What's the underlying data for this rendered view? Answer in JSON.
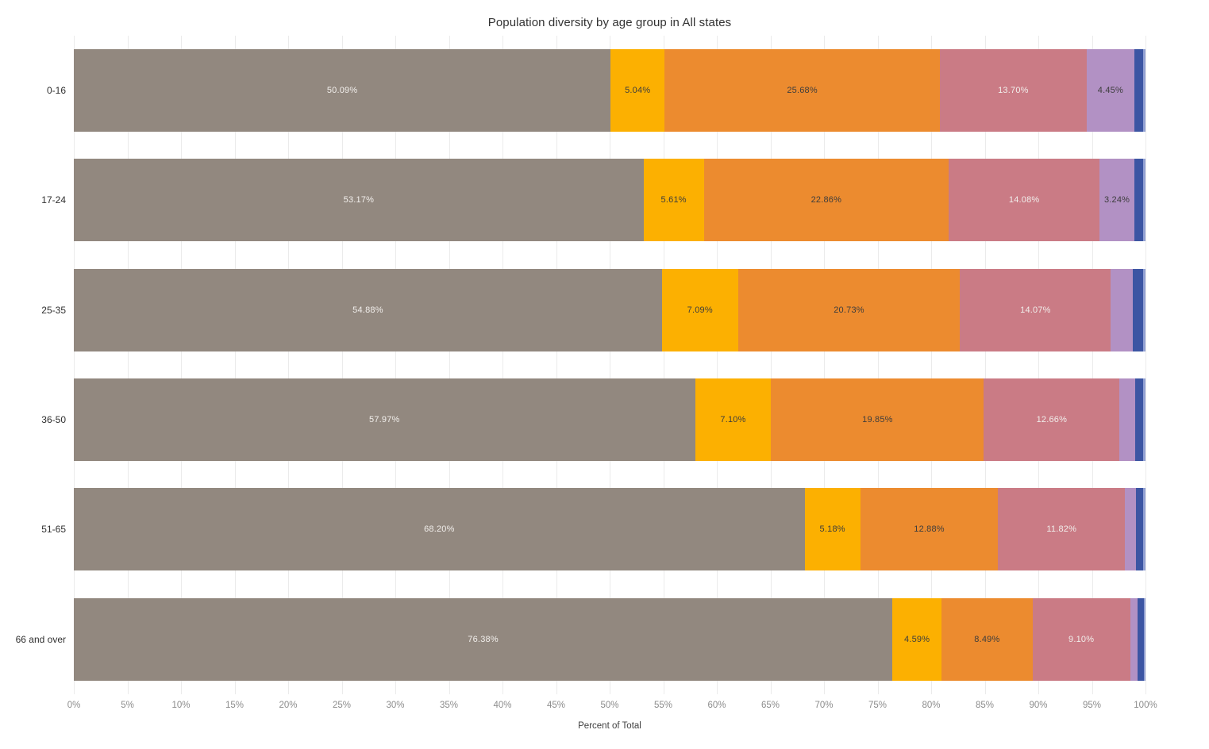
{
  "chart_data": {
    "type": "bar",
    "orientation": "horizontal-stacked",
    "title": "Population diversity by age group in All states",
    "xlabel": "Percent of Total",
    "xlim": [
      0,
      100
    ],
    "x_ticks": [
      "0%",
      "5%",
      "10%",
      "15%",
      "20%",
      "25%",
      "30%",
      "35%",
      "40%",
      "45%",
      "50%",
      "55%",
      "60%",
      "65%",
      "70%",
      "75%",
      "80%",
      "85%",
      "90%",
      "95%",
      "100%"
    ],
    "grid": "vertical",
    "legend_position": "none",
    "categories": [
      "0-16",
      "17-24",
      "25-35",
      "36-50",
      "51-65",
      "66 and over"
    ],
    "series": [
      {
        "name": "gray",
        "color": "#92887f",
        "label_text_color": "#f1eeeb",
        "values": [
          50.09,
          53.17,
          54.88,
          57.97,
          68.2,
          76.38
        ],
        "labels": [
          "50.09%",
          "53.17%",
          "54.88%",
          "57.97%",
          "68.20%",
          "76.38%"
        ]
      },
      {
        "name": "amber",
        "color": "#fcb001",
        "label_text_color": "#3d3d3d",
        "values": [
          5.04,
          5.61,
          7.09,
          7.1,
          5.18,
          4.59
        ],
        "labels": [
          "5.04%",
          "5.61%",
          "7.09%",
          "7.10%",
          "5.18%",
          "4.59%"
        ]
      },
      {
        "name": "orange",
        "color": "#ec8b2f",
        "label_text_color": "#3d3d3d",
        "values": [
          25.68,
          22.86,
          20.73,
          19.85,
          12.88,
          8.49
        ],
        "labels": [
          "25.68%",
          "22.86%",
          "20.73%",
          "19.85%",
          "12.88%",
          "8.49%"
        ]
      },
      {
        "name": "rose",
        "color": "#ca7b85",
        "label_text_color": "#f1eeeb",
        "values": [
          13.7,
          14.08,
          14.07,
          12.66,
          11.82,
          9.1
        ],
        "labels": [
          "13.70%",
          "14.08%",
          "14.07%",
          "12.66%",
          "11.82%",
          "9.10%"
        ]
      },
      {
        "name": "lavender",
        "color": "#b291c4",
        "label_text_color": "#3d3d3d",
        "values": [
          4.45,
          3.24,
          2.05,
          1.45,
          1.0,
          0.7
        ],
        "labels": [
          "4.45%",
          "3.24%",
          "",
          "",
          "",
          ""
        ]
      },
      {
        "name": "navy",
        "color": "#3c55a3",
        "label_text_color": "#f1eeeb",
        "values": [
          0.82,
          0.82,
          0.95,
          0.77,
          0.72,
          0.59
        ],
        "labels": [
          "",
          "",
          "",
          "",
          "",
          ""
        ]
      },
      {
        "name": "periwinkle",
        "color": "#93a1d3",
        "label_text_color": "#3d3d3d",
        "values": [
          0.22,
          0.22,
          0.23,
          0.2,
          0.2,
          0.15
        ],
        "labels": [
          "",
          "",
          "",
          "",
          "",
          ""
        ]
      }
    ]
  },
  "colors": {
    "background": "#ffffff",
    "gridline": "#ebebeb",
    "title_text": "#333333",
    "tick_text": "#8c8c8c",
    "axis_title_text": "#404040",
    "category_text": "#2f2f2f"
  }
}
